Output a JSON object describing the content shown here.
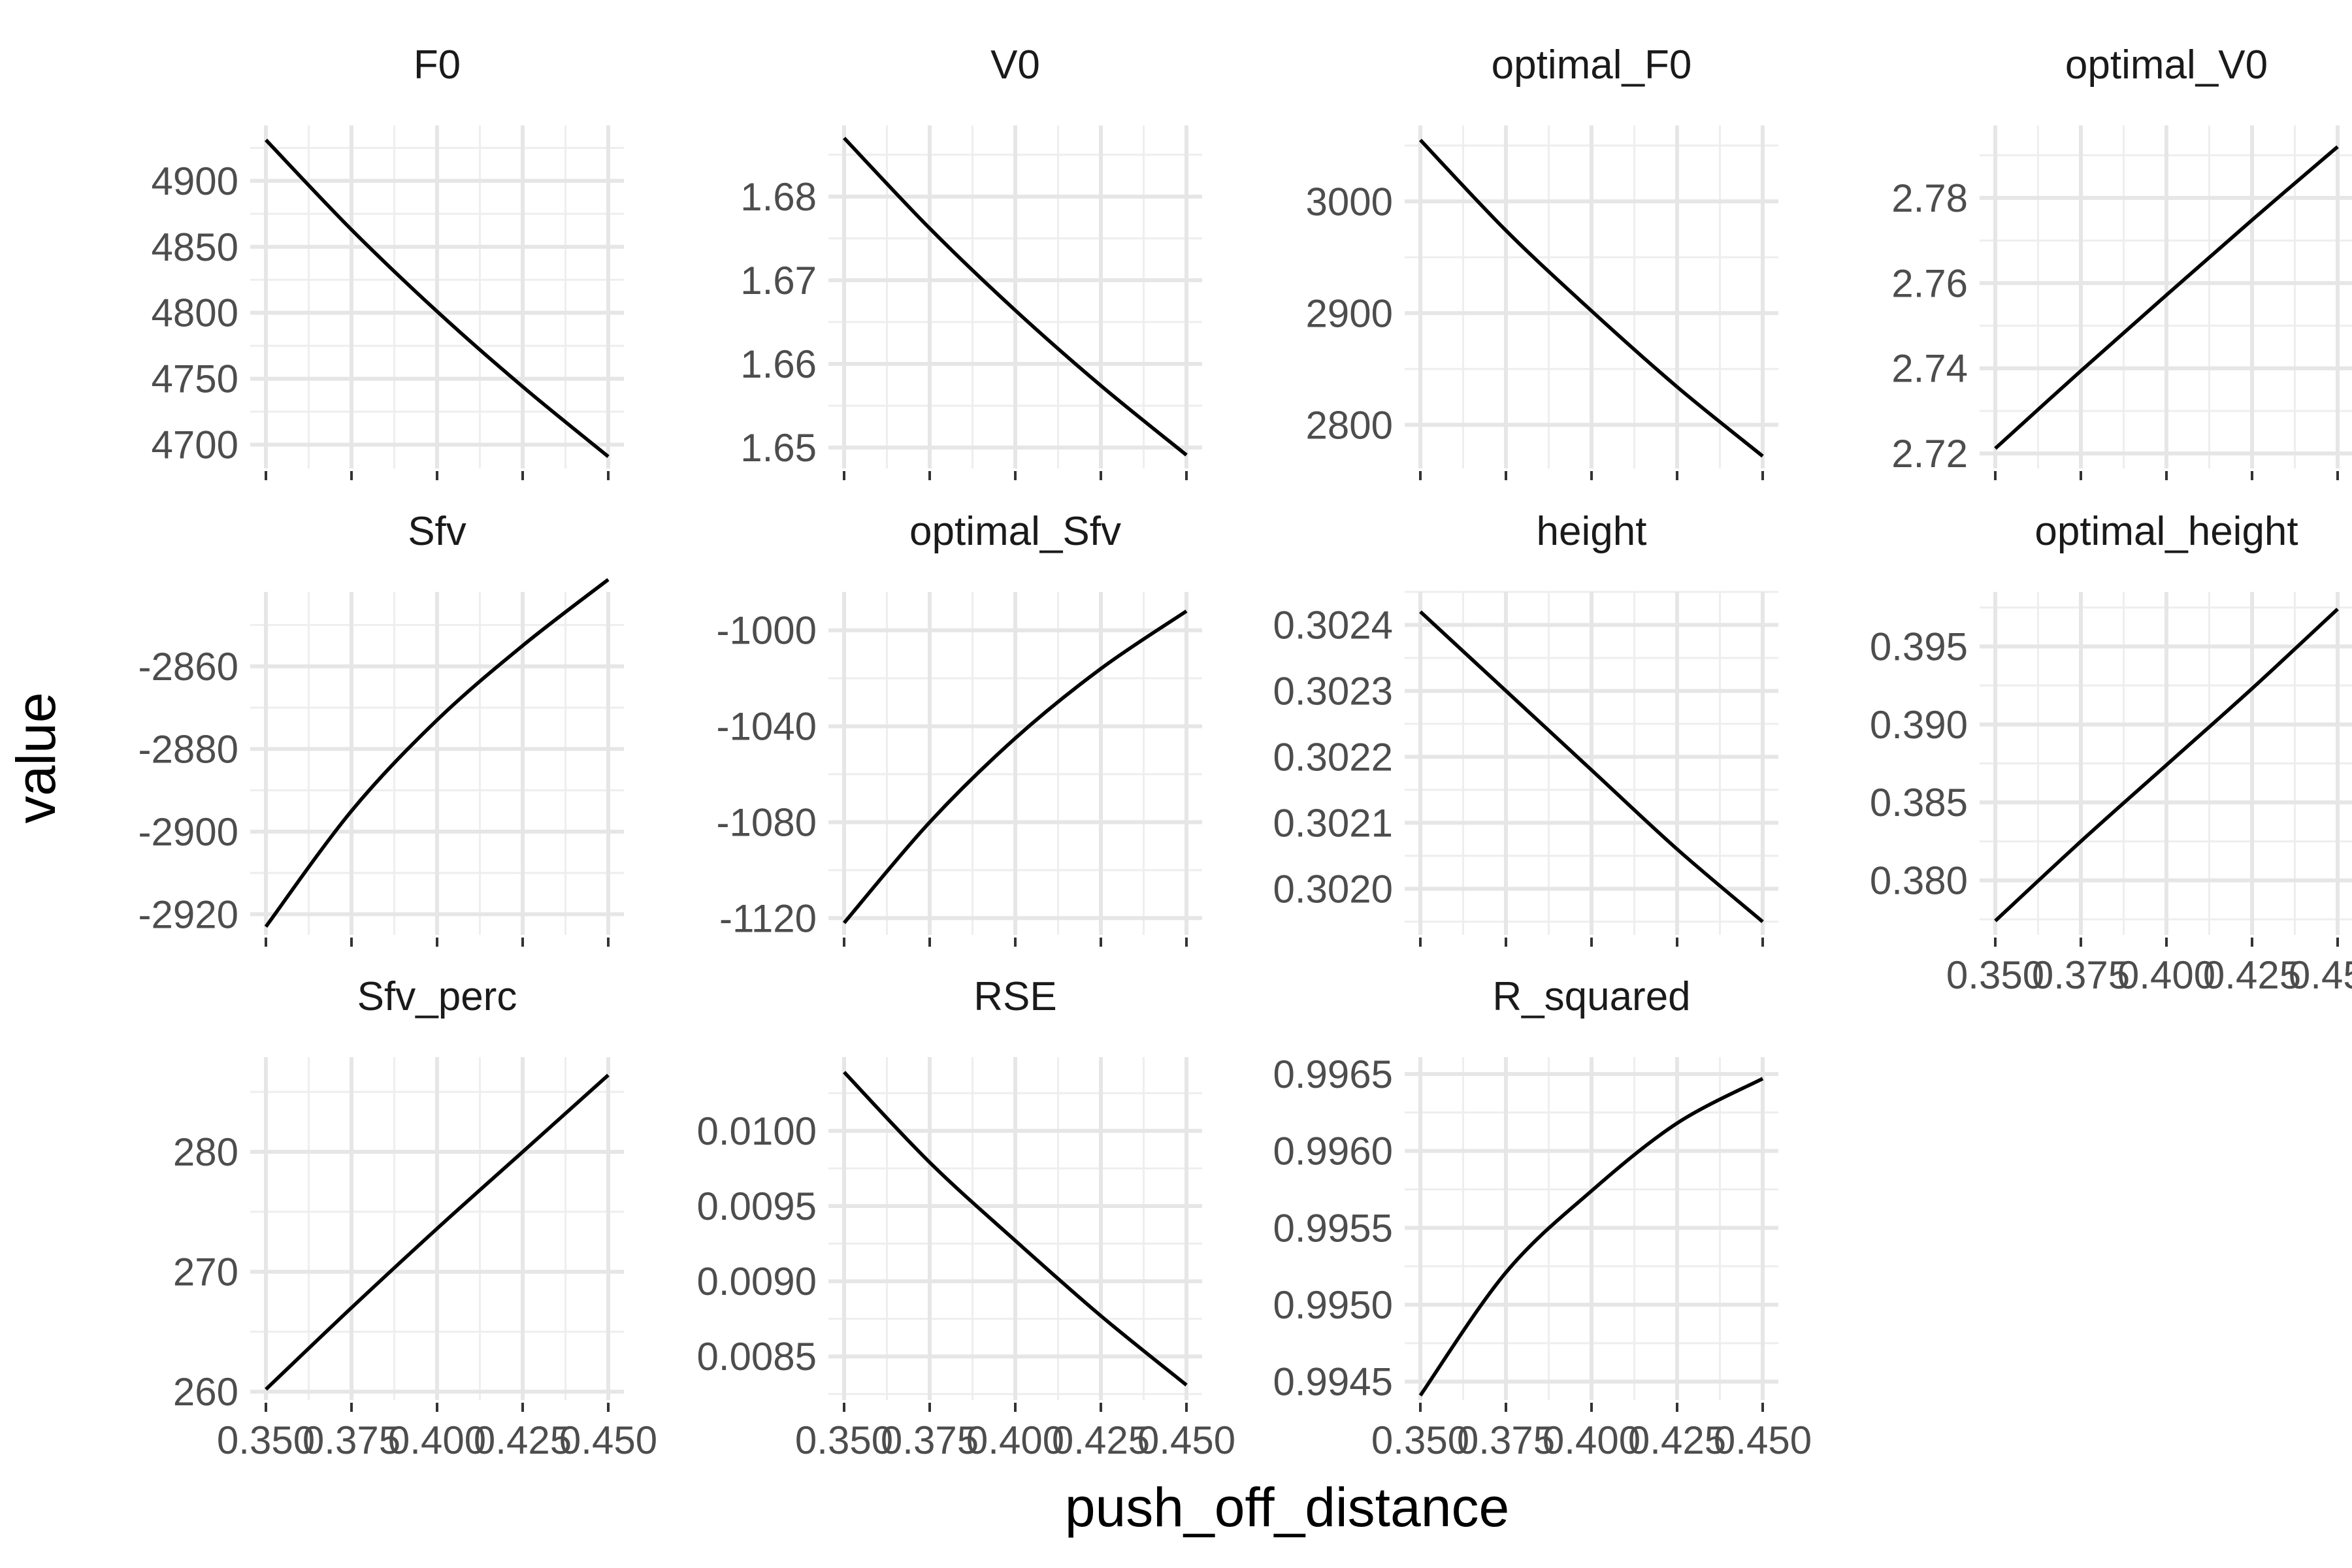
{
  "chart_data": {
    "type": "line",
    "layout": "faceted 3 rows x 4 columns, free y scales",
    "xlabel": "push_off_distance",
    "ylabel": "value",
    "x_range": [
      0.35,
      0.45
    ],
    "x_ticks": [
      0.35,
      0.375,
      0.4,
      0.425,
      0.45
    ],
    "x_tick_labels": [
      "0.350",
      "0.375",
      "0.400",
      "0.425",
      "0.450"
    ],
    "grid": true,
    "line_color": "#000000",
    "panels": [
      {
        "name": "F0",
        "ylim": [
          4682,
          4942
        ],
        "yticks": [
          4700,
          4750,
          4800,
          4850,
          4900
        ],
        "ytick_labels": [
          "4700",
          "4750",
          "4800",
          "4850",
          "4900"
        ],
        "x": [
          0.35,
          0.375,
          0.4,
          0.425,
          0.45
        ],
        "y": [
          4931,
          4863,
          4801,
          4744,
          4691
        ]
      },
      {
        "name": "V0",
        "ylim": [
          1.6475,
          1.6885
        ],
        "yticks": [
          1.65,
          1.66,
          1.67,
          1.68
        ],
        "ytick_labels": [
          "1.65",
          "1.66",
          "1.67",
          "1.68"
        ],
        "x": [
          0.35,
          0.375,
          0.4,
          0.425,
          0.45
        ],
        "y": [
          1.687,
          1.6762,
          1.6664,
          1.6574,
          1.6491
        ]
      },
      {
        "name": "optimal_F0",
        "ylim": [
          2761,
          3068
        ],
        "yticks": [
          2800,
          2900,
          3000
        ],
        "ytick_labels": [
          "2800",
          "2900",
          "3000"
        ],
        "x": [
          0.35,
          0.375,
          0.4,
          0.425,
          0.45
        ],
        "y": [
          3055,
          2974,
          2902,
          2834,
          2772
        ]
      },
      {
        "name": "optimal_V0",
        "ylim": [
          2.7165,
          2.797
        ],
        "yticks": [
          2.72,
          2.74,
          2.76,
          2.78
        ],
        "ytick_labels": [
          "2.72",
          "2.74",
          "2.76",
          "2.78"
        ],
        "x": [
          0.35,
          0.375,
          0.4,
          0.425,
          0.45
        ],
        "y": [
          2.7212,
          2.7394,
          2.7572,
          2.7748,
          2.792
        ]
      },
      {
        "name": "Sfv",
        "ylim": [
          -2925,
          -2842
        ],
        "yticks": [
          -2920,
          -2900,
          -2880,
          -2860
        ],
        "ytick_labels": [
          "-2920",
          "-2900",
          "-2880",
          "-2860"
        ],
        "x": [
          0.35,
          0.375,
          0.4,
          0.425,
          0.45
        ],
        "y": [
          -2923,
          -2895,
          -2873,
          -2855,
          -2839
        ]
      },
      {
        "name": "optimal_Sfv",
        "ylim": [
          -1127,
          -984
        ],
        "yticks": [
          -1120,
          -1080,
          -1040,
          -1000
        ],
        "ytick_labels": [
          "-1120",
          "-1080",
          "-1040",
          "-1000"
        ],
        "x": [
          0.35,
          0.375,
          0.4,
          0.425,
          0.45
        ],
        "y": [
          -1122,
          -1080,
          -1045,
          -1016,
          -992
        ]
      },
      {
        "name": "height",
        "ylim": [
          0.30193,
          0.30245
        ],
        "yticks": [
          0.302,
          0.3021,
          0.3022,
          0.3023,
          0.3024
        ],
        "ytick_labels": [
          "0.3020",
          "0.3021",
          "0.3022",
          "0.3023",
          "0.3024"
        ],
        "x": [
          0.35,
          0.375,
          0.4,
          0.425,
          0.45
        ],
        "y": [
          0.30242,
          0.3023,
          0.30218,
          0.30206,
          0.30195
        ]
      },
      {
        "name": "optimal_height",
        "ylim": [
          0.3765,
          0.3985
        ],
        "yticks": [
          0.38,
          0.385,
          0.39,
          0.395
        ],
        "ytick_labels": [
          "0.380",
          "0.385",
          "0.390",
          "0.395"
        ],
        "x": [
          0.35,
          0.375,
          0.4,
          0.425,
          0.45
        ],
        "y": [
          0.3774,
          0.3825,
          0.3874,
          0.3923,
          0.3974
        ]
      },
      {
        "name": "Sfv_perc",
        "ylim": [
          259.3,
          287.9
        ],
        "yticks": [
          260,
          270,
          280
        ],
        "ytick_labels": [
          "260",
          "270",
          "280"
        ],
        "x": [
          0.35,
          0.375,
          0.4,
          0.425,
          0.45
        ],
        "y": [
          260.2,
          267.0,
          273.6,
          280.0,
          286.4
        ]
      },
      {
        "name": "RSE",
        "ylim": [
          0.00821,
          0.01049
        ],
        "yticks": [
          0.0085,
          0.009,
          0.0095,
          0.01
        ],
        "ytick_labels": [
          "0.0085",
          "0.0090",
          "0.0095",
          "0.0100"
        ],
        "x": [
          0.35,
          0.375,
          0.4,
          0.425,
          0.45
        ],
        "y": [
          0.01039,
          0.00979,
          0.00927,
          0.00877,
          0.00831
        ]
      },
      {
        "name": "R_squared",
        "ylim": [
          0.99438,
          0.99661
        ],
        "yticks": [
          0.9945,
          0.995,
          0.9955,
          0.996,
          0.9965
        ],
        "ytick_labels": [
          "0.9945",
          "0.9950",
          "0.9955",
          "0.9960",
          "0.9965"
        ],
        "x": [
          0.35,
          0.375,
          0.4,
          0.425,
          0.45
        ],
        "y": [
          0.99441,
          0.99521,
          0.99574,
          0.99618,
          0.99647
        ]
      }
    ]
  }
}
